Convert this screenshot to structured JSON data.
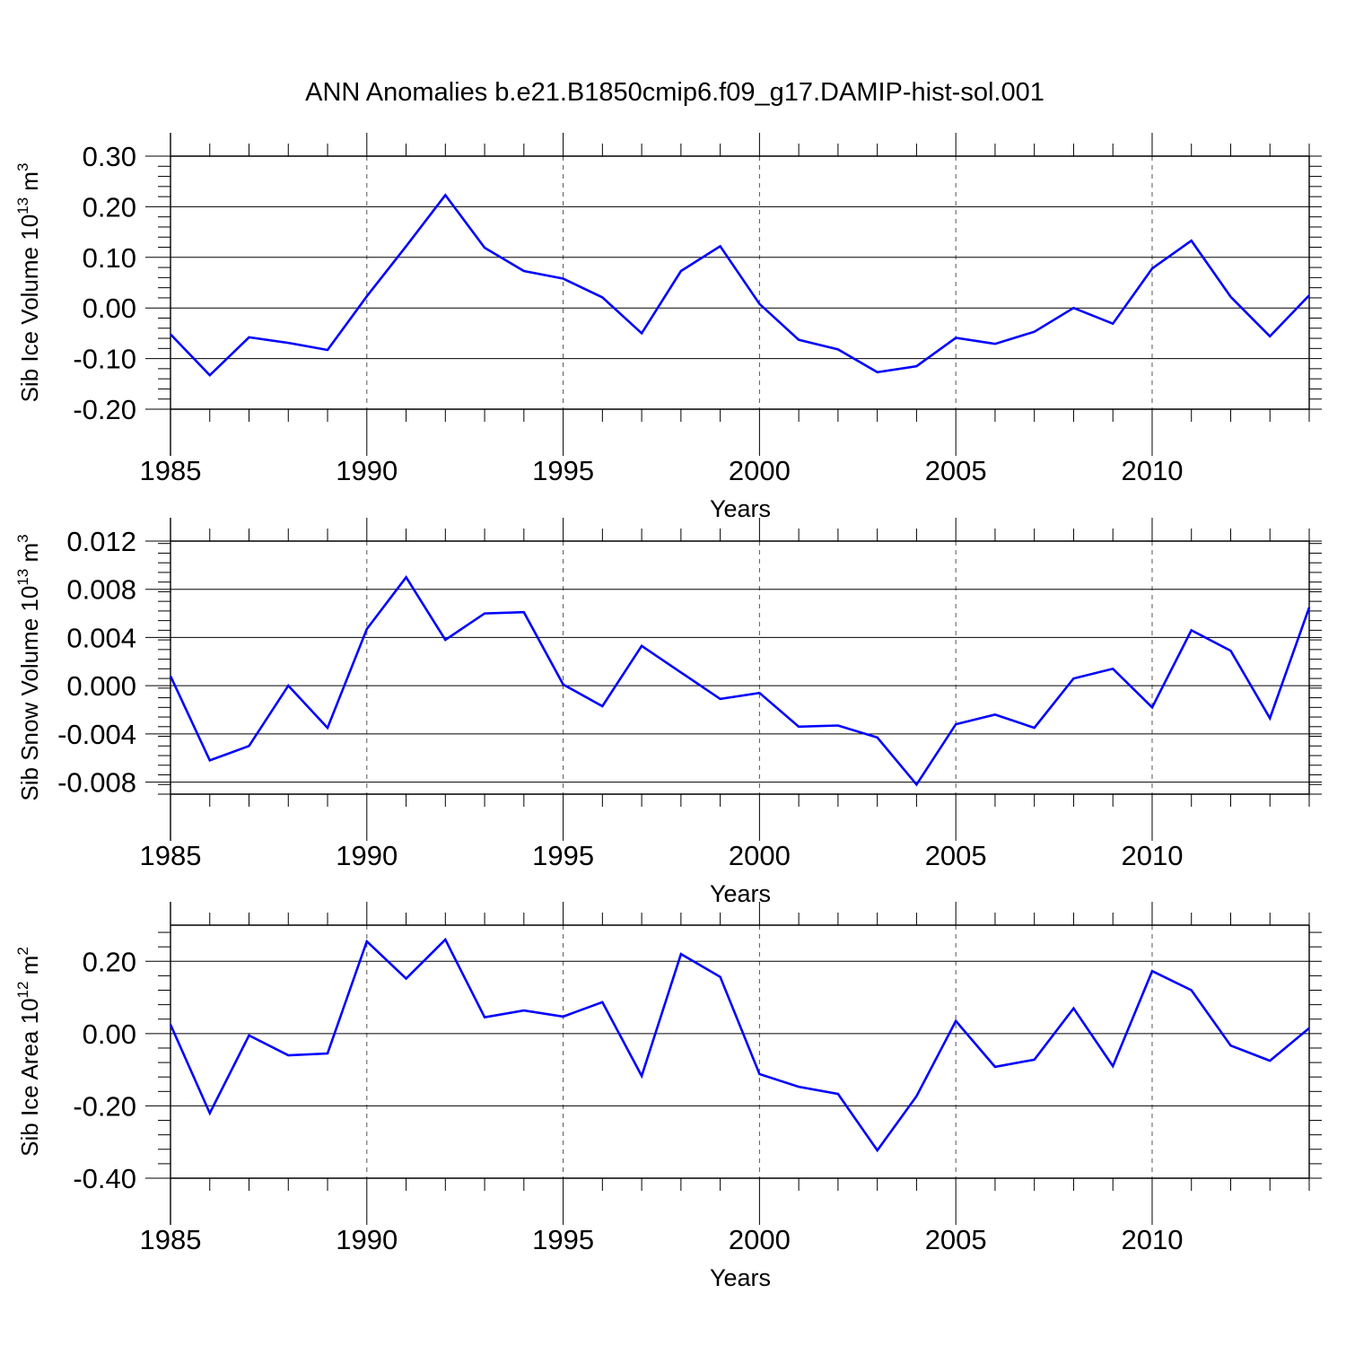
{
  "title": "ANN Anomalies b.e21.B1850cmip6.f09_g17.DAMIP-hist-sol.001",
  "colors": {
    "series": "#0000ff",
    "axis": "#000000",
    "grid": "#555555"
  },
  "chart_data": [
    {
      "type": "line",
      "ylabel": {
        "text": "Sib Ice Volume 10",
        "exp": "13",
        "unit": " m",
        "unit_exp": "3"
      },
      "xlabel": "Years",
      "xlim": [
        1985,
        2014
      ],
      "ylim": [
        -0.2,
        0.3
      ],
      "yticks": [
        -0.2,
        -0.1,
        0.0,
        0.1,
        0.2,
        0.3
      ],
      "ytick_labels": [
        "-0.20",
        "-0.10",
        "0.00",
        "0.10",
        "0.20",
        "0.30"
      ],
      "xticks": [
        1985,
        1990,
        1995,
        2000,
        2005,
        2010
      ],
      "xtick_labels": [
        "1985",
        "1990",
        "1995",
        "2000",
        "2005",
        "2010"
      ],
      "grid_x": [
        1990,
        1995,
        2000,
        2005,
        2010
      ],
      "x": [
        1985,
        1986,
        1987,
        1988,
        1989,
        1990,
        1991,
        1992,
        1993,
        1994,
        1995,
        1996,
        1997,
        1998,
        1999,
        2000,
        2001,
        2002,
        2003,
        2004,
        2005,
        2006,
        2007,
        2008,
        2009,
        2010,
        2011,
        2012,
        2013,
        2014
      ],
      "values": [
        -0.052,
        -0.133,
        -0.058,
        -0.069,
        -0.083,
        0.023,
        0.122,
        0.223,
        0.119,
        0.073,
        0.058,
        0.021,
        -0.05,
        0.073,
        0.122,
        0.008,
        -0.063,
        -0.082,
        -0.127,
        -0.115,
        -0.059,
        -0.071,
        -0.047,
        0.0,
        -0.031,
        0.078,
        0.133,
        0.022,
        -0.056,
        0.025
      ]
    },
    {
      "type": "line",
      "ylabel": {
        "text": "Sib Snow Volume 10",
        "exp": "13",
        "unit": " m",
        "unit_exp": "3"
      },
      "xlabel": "Years",
      "xlim": [
        1985,
        2014
      ],
      "ylim": [
        -0.009,
        0.012
      ],
      "yticks": [
        -0.008,
        -0.004,
        0.0,
        0.004,
        0.008,
        0.012
      ],
      "ytick_labels": [
        "-0.008",
        "-0.004",
        "0.000",
        "0.004",
        "0.008",
        "0.012"
      ],
      "xticks": [
        1985,
        1990,
        1995,
        2000,
        2005,
        2010
      ],
      "xtick_labels": [
        "1985",
        "1990",
        "1995",
        "2000",
        "2005",
        "2010"
      ],
      "grid_x": [
        1990,
        1995,
        2000,
        2005,
        2010
      ],
      "x": [
        1985,
        1986,
        1987,
        1988,
        1989,
        1990,
        1991,
        1992,
        1993,
        1994,
        1995,
        1996,
        1997,
        1998,
        1999,
        2000,
        2001,
        2002,
        2003,
        2004,
        2005,
        2006,
        2007,
        2008,
        2009,
        2010,
        2011,
        2012,
        2013,
        2014
      ],
      "values": [
        0.0008,
        -0.0062,
        -0.005,
        0.0,
        -0.0035,
        0.0047,
        0.009,
        0.0038,
        0.006,
        0.0061,
        0.0001,
        -0.0017,
        0.0033,
        0.0011,
        -0.0011,
        -0.0006,
        -0.0034,
        -0.0033,
        -0.0043,
        -0.0082,
        -0.0032,
        -0.0024,
        -0.0035,
        0.0006,
        0.0014,
        -0.0018,
        0.0046,
        0.0029,
        -0.0027,
        0.0065
      ]
    },
    {
      "type": "line",
      "ylabel": {
        "text": "Sib Ice Area 10",
        "exp": "12",
        "unit": " m",
        "unit_exp": "2"
      },
      "xlabel": "Years",
      "xlim": [
        1985,
        2014
      ],
      "ylim": [
        -0.4,
        0.3
      ],
      "yticks": [
        -0.4,
        -0.2,
        0.0,
        0.2
      ],
      "ytick_labels": [
        "-0.40",
        "-0.20",
        "0.00",
        "0.20"
      ],
      "xticks": [
        1985,
        1990,
        1995,
        2000,
        2005,
        2010
      ],
      "xtick_labels": [
        "1985",
        "1990",
        "1995",
        "2000",
        "2005",
        "2010"
      ],
      "grid_x": [
        1990,
        1995,
        2000,
        2005,
        2010
      ],
      "x": [
        1985,
        1986,
        1987,
        1988,
        1989,
        1990,
        1991,
        1992,
        1993,
        1994,
        1995,
        1996,
        1997,
        1998,
        1999,
        2000,
        2001,
        2002,
        2003,
        2004,
        2005,
        2006,
        2007,
        2008,
        2009,
        2010,
        2011,
        2012,
        2013,
        2014
      ],
      "values": [
        0.025,
        -0.22,
        -0.005,
        -0.06,
        -0.055,
        0.255,
        0.152,
        0.26,
        0.045,
        0.064,
        0.047,
        0.087,
        -0.117,
        0.22,
        0.157,
        -0.112,
        -0.147,
        -0.167,
        -0.323,
        -0.173,
        0.035,
        -0.092,
        -0.072,
        0.07,
        -0.09,
        0.173,
        0.12,
        -0.033,
        -0.075,
        0.015
      ]
    }
  ]
}
